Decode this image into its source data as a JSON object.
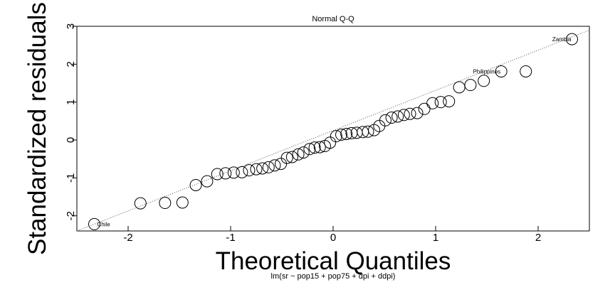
{
  "chart_data": {
    "type": "scatter",
    "title": "Normal Q-Q",
    "xlabel": "Theoretical Quantiles",
    "ylabel": "Standardized residuals",
    "subtitle": "lm(sr ~ pop15 + pop75 + dpi + ddpi)",
    "xlim": [
      -2.5,
      2.5
    ],
    "ylim": [
      -2.4,
      3.0
    ],
    "x_ticks": [
      -2,
      -1,
      0,
      1,
      2
    ],
    "y_ticks": [
      -2,
      -1,
      0,
      1,
      2,
      3
    ],
    "grid": false,
    "reference_line": {
      "style": "dotted",
      "x": [
        -2.5,
        2.5
      ],
      "y": [
        -2.4,
        2.9
      ]
    },
    "points": [
      {
        "x": -2.33,
        "y": -2.22
      },
      {
        "x": -1.88,
        "y": -1.67
      },
      {
        "x": -1.64,
        "y": -1.66
      },
      {
        "x": -1.47,
        "y": -1.65
      },
      {
        "x": -1.34,
        "y": -1.19
      },
      {
        "x": -1.23,
        "y": -1.09
      },
      {
        "x": -1.13,
        "y": -0.9
      },
      {
        "x": -1.05,
        "y": -0.88
      },
      {
        "x": -0.97,
        "y": -0.86
      },
      {
        "x": -0.89,
        "y": -0.85
      },
      {
        "x": -0.82,
        "y": -0.8
      },
      {
        "x": -0.75,
        "y": -0.77
      },
      {
        "x": -0.69,
        "y": -0.75
      },
      {
        "x": -0.63,
        "y": -0.72
      },
      {
        "x": -0.57,
        "y": -0.67
      },
      {
        "x": -0.51,
        "y": -0.63
      },
      {
        "x": -0.45,
        "y": -0.47
      },
      {
        "x": -0.4,
        "y": -0.45
      },
      {
        "x": -0.34,
        "y": -0.38
      },
      {
        "x": -0.29,
        "y": -0.33
      },
      {
        "x": -0.23,
        "y": -0.24
      },
      {
        "x": -0.18,
        "y": -0.2
      },
      {
        "x": -0.13,
        "y": -0.19
      },
      {
        "x": -0.08,
        "y": -0.16
      },
      {
        "x": -0.03,
        "y": -0.07
      },
      {
        "x": 0.03,
        "y": 0.1
      },
      {
        "x": 0.08,
        "y": 0.14
      },
      {
        "x": 0.13,
        "y": 0.16
      },
      {
        "x": 0.18,
        "y": 0.18
      },
      {
        "x": 0.23,
        "y": 0.19
      },
      {
        "x": 0.29,
        "y": 0.21
      },
      {
        "x": 0.34,
        "y": 0.22
      },
      {
        "x": 0.4,
        "y": 0.26
      },
      {
        "x": 0.45,
        "y": 0.37
      },
      {
        "x": 0.51,
        "y": 0.52
      },
      {
        "x": 0.57,
        "y": 0.59
      },
      {
        "x": 0.63,
        "y": 0.62
      },
      {
        "x": 0.69,
        "y": 0.66
      },
      {
        "x": 0.75,
        "y": 0.69
      },
      {
        "x": 0.82,
        "y": 0.71
      },
      {
        "x": 0.89,
        "y": 0.82
      },
      {
        "x": 0.97,
        "y": 0.97
      },
      {
        "x": 1.05,
        "y": 1.0
      },
      {
        "x": 1.13,
        "y": 1.02
      },
      {
        "x": 1.23,
        "y": 1.39
      },
      {
        "x": 1.34,
        "y": 1.45
      },
      {
        "x": 1.47,
        "y": 1.56
      },
      {
        "x": 1.64,
        "y": 1.81
      },
      {
        "x": 1.88,
        "y": 1.81
      },
      {
        "x": 2.33,
        "y": 2.66
      }
    ],
    "annotations": [
      {
        "label": "Chile",
        "x": -2.33,
        "y": -2.22
      },
      {
        "label": "Philippines",
        "x": 1.64,
        "y": 1.81
      },
      {
        "label": "Zambia",
        "x": 2.33,
        "y": 2.66
      }
    ]
  }
}
